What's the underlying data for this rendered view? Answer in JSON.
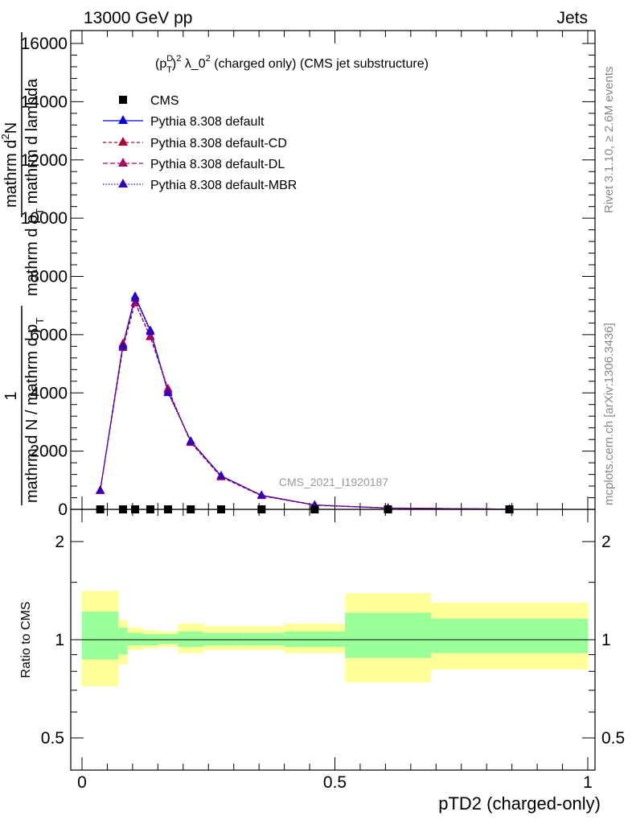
{
  "header": {
    "left": "13000 GeV pp",
    "right": "Jets"
  },
  "side": {
    "rivet": "Rivet 3.1.10, ≥ 2.6M events",
    "mcplots": "mcplots.cern.ch [arXiv:1306.3436]"
  },
  "watermark": "CMS_2021_I1920187",
  "colors": {
    "cms": "#000000",
    "default": "#0000dd",
    "cd": "#aa0033",
    "dl": "#aa0066",
    "mbr": "#3300bb",
    "band_outer": "#ffff99",
    "band_inner": "#99ff99"
  },
  "chart_data": {
    "type": "line",
    "title": "(p_T^D)^2 λ_0^2 (charged only) (CMS jet substructure)",
    "title_parts": {
      "p": "(p",
      "sup_d": "D",
      "sub_t": "T",
      "close": ")",
      "sup_2": "2",
      "lambda": " λ_0",
      "sup_2b": "2",
      "rest": " (charged only) (CMS jet substructure)"
    },
    "xlabel": "pTD2 (charged-only)",
    "ylabel_parts": {
      "one": "1",
      "den": "mathrm d N / mathrm d p",
      "den_sub": "T",
      "num2": "mathrm d",
      "num2_sup": "2",
      "num2_rest": "N",
      "den2": "mathrm d p",
      "den2_sub": "T",
      "den2_rest": " mathrm d lambda"
    },
    "ratio_ylabel": "Ratio to CMS",
    "xlim": [
      0,
      1
    ],
    "ylim": [
      0,
      16000
    ],
    "ratio_ylim": [
      0.4,
      2.2
    ],
    "x_ticks": [
      {
        "v": 0,
        "label": "0"
      },
      {
        "v": 0.5,
        "label": "0.5"
      },
      {
        "v": 1,
        "label": "1"
      }
    ],
    "y_ticks": [
      {
        "v": 0,
        "label": "0"
      },
      {
        "v": 2000,
        "label": "2000"
      },
      {
        "v": 4000,
        "label": "4000"
      },
      {
        "v": 6000,
        "label": "6000"
      },
      {
        "v": 8000,
        "label": "8000"
      },
      {
        "v": 10000,
        "label": "10000"
      },
      {
        "v": 12000,
        "label": "12000"
      },
      {
        "v": 14000,
        "label": "14000"
      },
      {
        "v": 16000,
        "label": "16000"
      }
    ],
    "ratio_ticks": [
      {
        "v": 0.5,
        "label": "0.5"
      },
      {
        "v": 1,
        "label": "1"
      },
      {
        "v": 2,
        "label": "2"
      }
    ],
    "bin_edges": [
      0,
      0.072,
      0.09,
      0.12,
      0.15,
      0.19,
      0.24,
      0.32,
      0.4,
      0.52,
      0.69,
      1.0
    ],
    "x": [
      0.036,
      0.081,
      0.105,
      0.135,
      0.17,
      0.215,
      0.275,
      0.355,
      0.46,
      0.605,
      0.845
    ],
    "cms_values": [
      0,
      0,
      0,
      0,
      0,
      0,
      0,
      0,
      0,
      0,
      0
    ],
    "series": [
      {
        "name": "Pythia 8.308 default",
        "style": "solid",
        "color_key": "default",
        "values": [
          650,
          5650,
          7320,
          6150,
          4050,
          2350,
          1150,
          480,
          150,
          45,
          8
        ]
      },
      {
        "name": "Pythia 8.308 default-CD",
        "style": "dashed",
        "color_key": "cd",
        "values": [
          640,
          5700,
          7100,
          5950,
          4150,
          2300,
          1120,
          470,
          145,
          42,
          8
        ]
      },
      {
        "name": "Pythia 8.308 default-DL",
        "style": "dashed",
        "color_key": "dl",
        "values": [
          635,
          5550,
          7080,
          5920,
          4120,
          2290,
          1110,
          465,
          142,
          41,
          8
        ]
      },
      {
        "name": "Pythia 8.308 default-MBR",
        "style": "dotted",
        "color_key": "mbr",
        "values": [
          660,
          5600,
          7250,
          6100,
          4000,
          2340,
          1160,
          490,
          152,
          46,
          9
        ]
      }
    ],
    "legend_cms": "CMS",
    "ratio_bands": {
      "outer_lo": [
        0.72,
        0.84,
        0.93,
        0.94,
        0.95,
        0.91,
        0.93,
        0.93,
        0.91,
        0.74,
        0.81
      ],
      "outer_hi": [
        1.41,
        1.15,
        1.09,
        1.07,
        1.06,
        1.12,
        1.1,
        1.1,
        1.12,
        1.39,
        1.3
      ],
      "inner_lo": [
        0.87,
        0.9,
        0.96,
        0.96,
        0.97,
        0.95,
        0.96,
        0.96,
        0.95,
        0.88,
        0.91
      ],
      "inner_hi": [
        1.22,
        1.09,
        1.05,
        1.04,
        1.04,
        1.06,
        1.05,
        1.05,
        1.06,
        1.21,
        1.16
      ]
    }
  }
}
